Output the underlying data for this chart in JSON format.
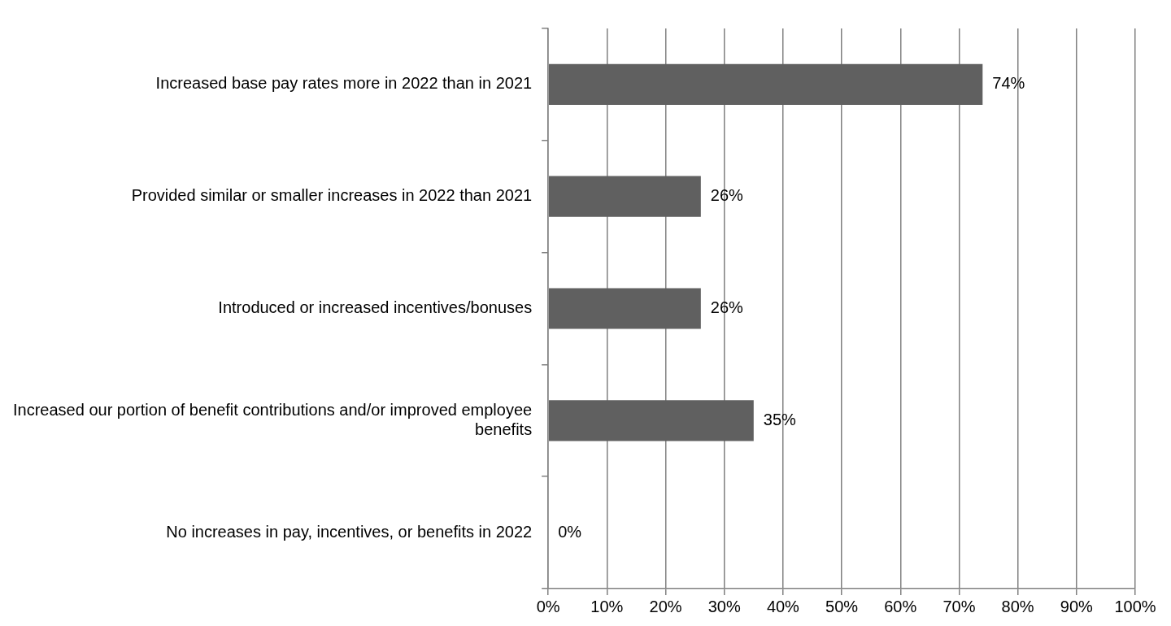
{
  "chart_data": {
    "type": "bar",
    "orientation": "horizontal",
    "categories": [
      "Increased base pay rates more in 2022 than in 2021",
      "Provided similar or smaller increases in 2022 than 2021",
      "Introduced or increased incentives/bonuses",
      "Increased our portion of benefit contributions and/or improved employee benefits",
      "No increases in pay, incentives, or benefits in 2022"
    ],
    "values": [
      74,
      26,
      26,
      35,
      0
    ],
    "value_labels": [
      "74%",
      "26%",
      "26%",
      "35%",
      "0%"
    ],
    "color": "#606060",
    "xlim": [
      0,
      100
    ],
    "xticks": [
      {
        "value": 0,
        "label": "0%"
      },
      {
        "value": 10,
        "label": "10%"
      },
      {
        "value": 20,
        "label": "20%"
      },
      {
        "value": 30,
        "label": "30%"
      },
      {
        "value": 40,
        "label": "40%"
      },
      {
        "value": 50,
        "label": "50%"
      },
      {
        "value": 60,
        "label": "60%"
      },
      {
        "value": 70,
        "label": "70%"
      },
      {
        "value": 80,
        "label": "80%"
      },
      {
        "value": 90,
        "label": "90%"
      },
      {
        "value": 100,
        "label": "100%"
      }
    ],
    "grid": "x",
    "legend": false
  }
}
